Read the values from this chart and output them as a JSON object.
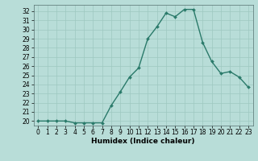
{
  "x": [
    0,
    1,
    2,
    3,
    4,
    5,
    6,
    7,
    8,
    9,
    10,
    11,
    12,
    13,
    14,
    15,
    16,
    17,
    18,
    19,
    20,
    21,
    22,
    23
  ],
  "y": [
    20,
    20,
    20,
    20,
    19.8,
    19.8,
    19.8,
    19.8,
    21.7,
    23.2,
    24.8,
    25.8,
    29.0,
    30.3,
    31.8,
    31.4,
    32.2,
    32.2,
    28.6,
    26.5,
    25.2,
    25.4,
    24.8,
    23.7
  ],
  "line_color": "#2a7a6a",
  "marker": "D",
  "marker_size": 2.0,
  "bg_color": "#b8ddd8",
  "grid_color": "#9ec8c0",
  "xlabel": "Humidex (Indice chaleur)",
  "ylim": [
    19.5,
    32.7
  ],
  "xlim": [
    -0.5,
    23.5
  ],
  "yticks": [
    20,
    21,
    22,
    23,
    24,
    25,
    26,
    27,
    28,
    29,
    30,
    31,
    32
  ],
  "xticks": [
    0,
    1,
    2,
    3,
    4,
    5,
    6,
    7,
    8,
    9,
    10,
    11,
    12,
    13,
    14,
    15,
    16,
    17,
    18,
    19,
    20,
    21,
    22,
    23
  ],
  "tick_fontsize": 5.5,
  "label_fontsize": 6.5,
  "line_width": 1.0
}
